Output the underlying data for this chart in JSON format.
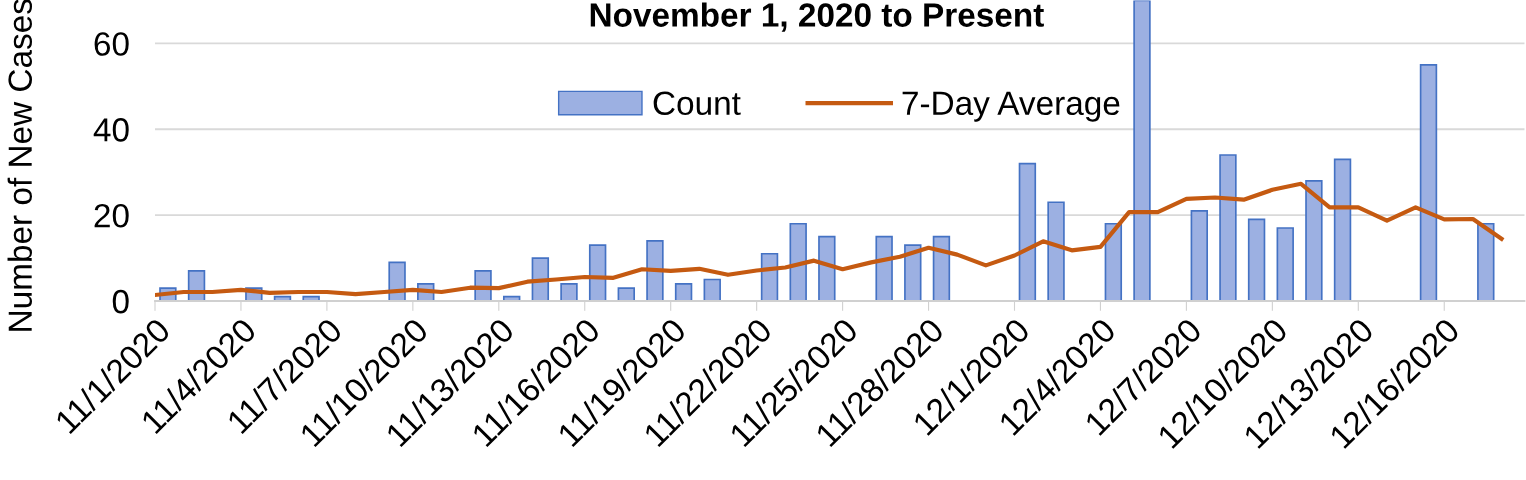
{
  "chart_data": {
    "type": "bar",
    "title": "November 1, 2020 to Present",
    "ylabel": "Number of New Cases",
    "categories": [
      "11/1/2020",
      null,
      null,
      "11/4/2020",
      null,
      null,
      "11/7/2020",
      null,
      null,
      "11/10/2020",
      null,
      null,
      "11/13/2020",
      null,
      null,
      "11/16/2020",
      null,
      null,
      "11/19/2020",
      null,
      null,
      "11/22/2020",
      null,
      null,
      "11/25/2020",
      null,
      null,
      "11/28/2020",
      null,
      null,
      "12/1/2020",
      null,
      null,
      "12/4/2020",
      null,
      null,
      "12/7/2020",
      null,
      null,
      "12/10/2020",
      null,
      null,
      "12/13/2020",
      null,
      null,
      "12/16/2020",
      null,
      null
    ],
    "series": [
      {
        "name": "Count",
        "color": "#9cb0e2",
        "values": [
          3,
          7,
          null,
          3,
          1,
          1,
          null,
          null,
          9,
          4,
          null,
          7,
          1,
          10,
          4,
          13,
          3,
          14,
          4,
          5,
          null,
          11,
          18,
          15,
          null,
          15,
          13,
          15,
          null,
          null,
          32,
          23,
          null,
          18,
          70,
          null,
          21,
          34,
          19,
          17,
          28,
          33,
          null,
          null,
          55,
          null,
          18,
          null
        ]
      },
      {
        "name": "7-Day Average",
        "type": "line",
        "color": "#c55a11",
        "values": [
          1.4,
          2.1,
          2.1,
          2.6,
          1.9,
          2.1,
          2.1,
          1.6,
          2.1,
          2.6,
          2.1,
          3.1,
          3.0,
          4.5,
          5.0,
          5.6,
          5.4,
          7.4,
          7.0,
          7.5,
          6.1,
          7.1,
          7.8,
          9.4,
          7.4,
          9.0,
          10.3,
          12.4,
          10.8,
          8.3,
          10.6,
          13.9,
          11.8,
          12.6,
          20.7,
          20.7,
          23.8,
          24.1,
          23.6,
          25.9,
          27.3,
          21.8,
          21.8,
          18.7,
          21.8,
          19.0,
          19.1,
          14.5
        ]
      }
    ],
    "ylim": [
      0,
      70
    ],
    "yticks": [
      0,
      20,
      40,
      60
    ],
    "grid": "y",
    "legend": "top",
    "marker": "none",
    "line_style": "solid"
  }
}
